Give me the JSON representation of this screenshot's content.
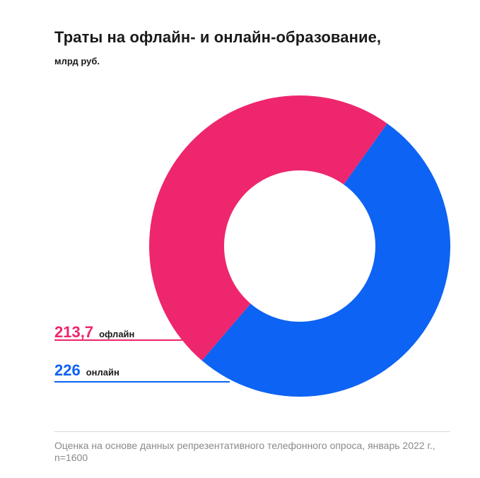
{
  "chart_data": {
    "type": "pie",
    "subtype": "donut",
    "title": "Траты на офлайн- и онлайн-образование,",
    "subtitle": "млрд руб.",
    "series": [
      {
        "name": "офлайн",
        "label": "213,7",
        "value": 213.7,
        "color": "#ee266d"
      },
      {
        "name": "онлайн",
        "label": "226",
        "value": 226,
        "color": "#0d63f3"
      }
    ]
  },
  "footnote": "Оценка на основе данных репрезентативного телефонного опроса, январь 2022 г., n=1600"
}
